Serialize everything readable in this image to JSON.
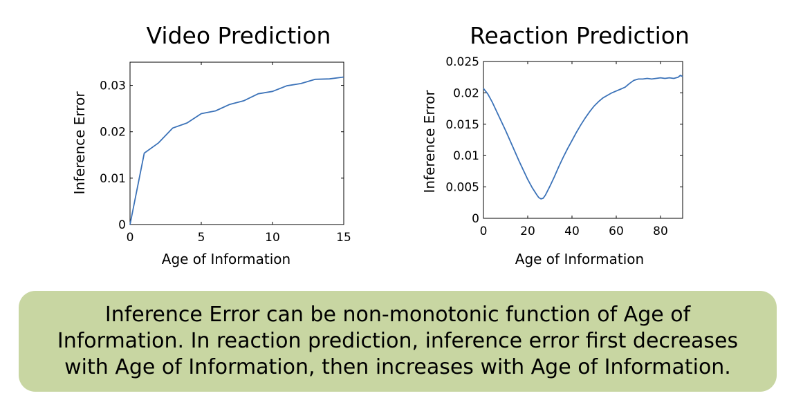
{
  "chart_data": [
    {
      "type": "line",
      "title": "Video Prediction",
      "xlabel": "Age of Information",
      "ylabel": "Inference Error",
      "xlim": [
        0,
        15
      ],
      "ylim": [
        0,
        0.035
      ],
      "xticks": [
        0,
        5,
        10,
        15
      ],
      "xtick_labels": [
        "0",
        "5",
        "10",
        "15"
      ],
      "yticks": [
        0,
        0.01,
        0.02,
        0.03
      ],
      "ytick_labels": [
        "0",
        "0.01",
        "0.02",
        "0.03"
      ],
      "grid": false,
      "series": [
        {
          "color": "#3b72b8",
          "x": [
            0,
            1,
            2,
            3,
            4,
            5,
            6,
            7,
            8,
            9,
            10,
            11,
            12,
            13,
            14,
            15
          ],
          "y": [
            0,
            0.0154,
            0.0176,
            0.0208,
            0.0219,
            0.0239,
            0.0245,
            0.0259,
            0.0267,
            0.0282,
            0.0287,
            0.0299,
            0.0304,
            0.0313,
            0.0314,
            0.0318
          ]
        }
      ]
    },
    {
      "type": "line",
      "title": "Reaction Prediction",
      "xlabel": "Age of Information",
      "ylabel": "Inference Error",
      "xlim": [
        0,
        90
      ],
      "ylim": [
        0,
        0.025
      ],
      "xticks": [
        0,
        20,
        40,
        60,
        80
      ],
      "xtick_labels": [
        "0",
        "20",
        "40",
        "60",
        "80"
      ],
      "yticks": [
        0,
        0.005,
        0.01,
        0.015,
        0.02,
        0.025
      ],
      "ytick_labels": [
        "0",
        "0.005",
        "0.01",
        "0.015",
        "0.02",
        "0.025"
      ],
      "grid": false,
      "series": [
        {
          "color": "#3b72b8",
          "x": [
            0,
            2,
            4,
            6,
            8,
            10,
            12,
            14,
            16,
            18,
            20,
            22,
            24,
            25,
            26,
            27,
            28,
            30,
            32,
            34,
            36,
            38,
            40,
            42,
            44,
            46,
            48,
            50,
            52,
            54,
            56,
            58,
            60,
            62,
            64,
            66,
            68,
            70,
            72,
            74,
            76,
            78,
            80,
            82,
            84,
            86,
            88,
            89,
            90
          ],
          "y": [
            0.0207,
            0.0198,
            0.0185,
            0.017,
            0.0155,
            0.014,
            0.0124,
            0.0108,
            0.0092,
            0.0077,
            0.0062,
            0.0049,
            0.0038,
            0.0033,
            0.0031,
            0.0032,
            0.0037,
            0.0051,
            0.0066,
            0.0082,
            0.0097,
            0.0111,
            0.0124,
            0.0137,
            0.0149,
            0.016,
            0.017,
            0.0179,
            0.0186,
            0.0192,
            0.0196,
            0.02,
            0.0203,
            0.0206,
            0.0209,
            0.0215,
            0.022,
            0.0222,
            0.0222,
            0.0223,
            0.0222,
            0.0223,
            0.0224,
            0.0223,
            0.0224,
            0.0223,
            0.0225,
            0.0228,
            0.0226
          ]
        }
      ]
    }
  ],
  "callout": {
    "text": "Inference Error can be non-monotonic function of Age of Information. In reaction prediction, inference error first decreases with Age of Information, then increases with Age of Information.",
    "background": "#c8d6a2"
  }
}
